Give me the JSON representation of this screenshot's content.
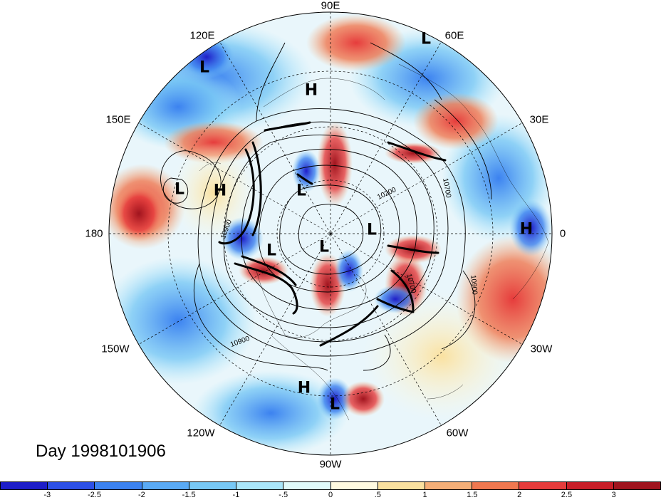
{
  "date_label": "Day 1998101906",
  "lon_labels": [
    {
      "text": "90E",
      "key": "n90e"
    },
    {
      "text": "60E",
      "key": "n60e"
    },
    {
      "text": "120E",
      "key": "n120e"
    },
    {
      "text": "30E",
      "key": "n30e"
    },
    {
      "text": "150E",
      "key": "n150e"
    },
    {
      "text": "180",
      "key": "n180"
    },
    {
      "text": "0",
      "key": "n0"
    },
    {
      "text": "150W",
      "key": "n150w"
    },
    {
      "text": "30W",
      "key": "n30w"
    },
    {
      "text": "120W",
      "key": "n120w"
    },
    {
      "text": "60W",
      "key": "n60w"
    },
    {
      "text": "90W",
      "key": "n90w"
    }
  ],
  "pressure_centers": [
    {
      "type": "L",
      "key": "c1"
    },
    {
      "type": "L",
      "key": "c2"
    },
    {
      "type": "H",
      "key": "c3"
    },
    {
      "type": "L",
      "key": "c4"
    },
    {
      "type": "H",
      "key": "c5"
    },
    {
      "type": "L",
      "key": "c6"
    },
    {
      "type": "L",
      "key": "c7"
    },
    {
      "type": "H",
      "key": "c8"
    },
    {
      "type": "L",
      "key": "c9"
    },
    {
      "type": "L",
      "key": "c10"
    },
    {
      "type": "H",
      "key": "c11"
    },
    {
      "type": "L",
      "key": "c12"
    }
  ],
  "contour_labels": [
    {
      "text": "10200",
      "key": "k1"
    },
    {
      "text": "10700",
      "key": "k2"
    },
    {
      "text": "10900",
      "key": "k3"
    },
    {
      "text": "10900",
      "key": "k4"
    },
    {
      "text": "10900",
      "key": "k5"
    },
    {
      "text": "10700",
      "key": "k6"
    }
  ],
  "colorbar": {
    "colors": [
      "#1e1ec8",
      "#2d50e6",
      "#3c82f0",
      "#5aaaf5",
      "#78c8f5",
      "#aae6fa",
      "#e1fafa",
      "#fffae1",
      "#fae1a0",
      "#f5af78",
      "#f07850",
      "#e63c3c",
      "#c81e28",
      "#a0141e"
    ],
    "ticks": [
      "-3",
      "-2.5",
      "-2",
      "-1.5",
      "-1",
      "-.5",
      "0",
      ".5",
      "1",
      "1.5",
      "2",
      "2.5",
      "3"
    ]
  }
}
